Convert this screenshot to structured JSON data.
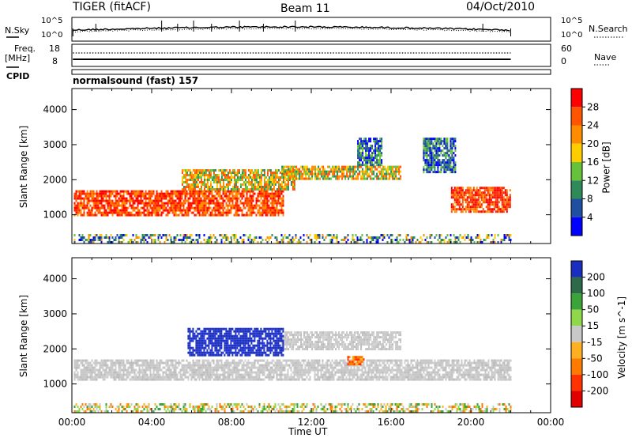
{
  "header": {
    "station": "TIGER (fitACF)",
    "beam": "Beam 11",
    "date": "04/Oct/2010"
  },
  "top_panels": {
    "nsky_label": "N.Sky",
    "nsky_ticks": [
      "10^5",
      "10^0"
    ],
    "nsearch_label": "N.Search",
    "freq_label": "Freq.",
    "freq_unit": "[MHz]",
    "freq_ticks": [
      "18",
      "8"
    ],
    "nave_ticks": [
      "60",
      "0"
    ],
    "nave_label": "Nave",
    "cpid_label": "CPID",
    "cpid_value": "normalsound (fast) 157"
  },
  "chart_data": [
    {
      "type": "heatmap",
      "name": "power",
      "ylabel": "Slant Range [km]",
      "yticks": [
        1000,
        2000,
        3000,
        4000
      ],
      "ylim": [
        180,
        4600
      ],
      "xlabel": "Time UT",
      "xticks": [
        "00:00",
        "04:00",
        "08:00",
        "12:00",
        "16:00",
        "20:00",
        "00:00"
      ],
      "xlim_hours": [
        0,
        24
      ],
      "colorbar_label": "Power [dB]",
      "colorbar_ticks": [
        "4",
        "8",
        "12",
        "16",
        "20",
        "24",
        "28"
      ],
      "colors": [
        "#0000ff",
        "#1f4fa0",
        "#2f8a5a",
        "#66c23a",
        "#ffcc00",
        "#ff8c00",
        "#ff5500",
        "#ff0000"
      ],
      "echo_bands": [
        {
          "t": [
            0.1,
            10.6
          ],
          "range_km": [
            1000,
            1700
          ],
          "level": "strong"
        },
        {
          "t": [
            5.5,
            11.2
          ],
          "range_km": [
            1700,
            2300
          ],
          "level": "medium"
        },
        {
          "t": [
            10.5,
            16.5
          ],
          "range_km": [
            2000,
            2400
          ],
          "level": "medium"
        },
        {
          "t": [
            14.3,
            15.5
          ],
          "range_km": [
            2400,
            3200
          ],
          "level": "weak"
        },
        {
          "t": [
            17.6,
            19.2
          ],
          "range_km": [
            2200,
            3200
          ],
          "level": "weak"
        },
        {
          "t": [
            19.0,
            22.0
          ],
          "range_km": [
            1100,
            1800
          ],
          "level": "strong"
        },
        {
          "t": [
            0.1,
            22.0
          ],
          "range_km": [
            180,
            450
          ],
          "level": "noise"
        }
      ]
    },
    {
      "type": "heatmap",
      "name": "velocity",
      "ylabel": "Slant Range [km]",
      "yticks": [
        1000,
        2000,
        3000,
        4000
      ],
      "ylim": [
        180,
        4600
      ],
      "xlabel": "Time UT",
      "xticks": [
        "00:00",
        "04:00",
        "08:00",
        "12:00",
        "16:00",
        "20:00",
        "00:00"
      ],
      "xlim_hours": [
        0,
        24
      ],
      "colorbar_label": "Velocity [m s^-1]",
      "colorbar_ticks": [
        "200",
        "100",
        "50",
        "15",
        "-15",
        "-50",
        "-100",
        "-200"
      ],
      "colors": [
        "#1a2fbf",
        "#2c6a4a",
        "#3aa33a",
        "#8ed84a",
        "#c8c8c8",
        "#ffb020",
        "#ff7a00",
        "#ff3300",
        "#e00000"
      ],
      "echo_bands": [
        {
          "t": [
            0.1,
            22.0
          ],
          "range_km": [
            1100,
            1700
          ],
          "level": "ground"
        },
        {
          "t": [
            10.5,
            16.5
          ],
          "range_km": [
            2000,
            2500
          ],
          "level": "ground"
        },
        {
          "t": [
            5.8,
            10.6
          ],
          "range_km": [
            1850,
            2600
          ],
          "level": "positive"
        },
        {
          "t": [
            13.8,
            14.6
          ],
          "range_km": [
            1550,
            1800
          ],
          "level": "negative"
        },
        {
          "t": [
            0.1,
            22.0
          ],
          "range_km": [
            180,
            450
          ],
          "level": "noise"
        }
      ]
    }
  ]
}
